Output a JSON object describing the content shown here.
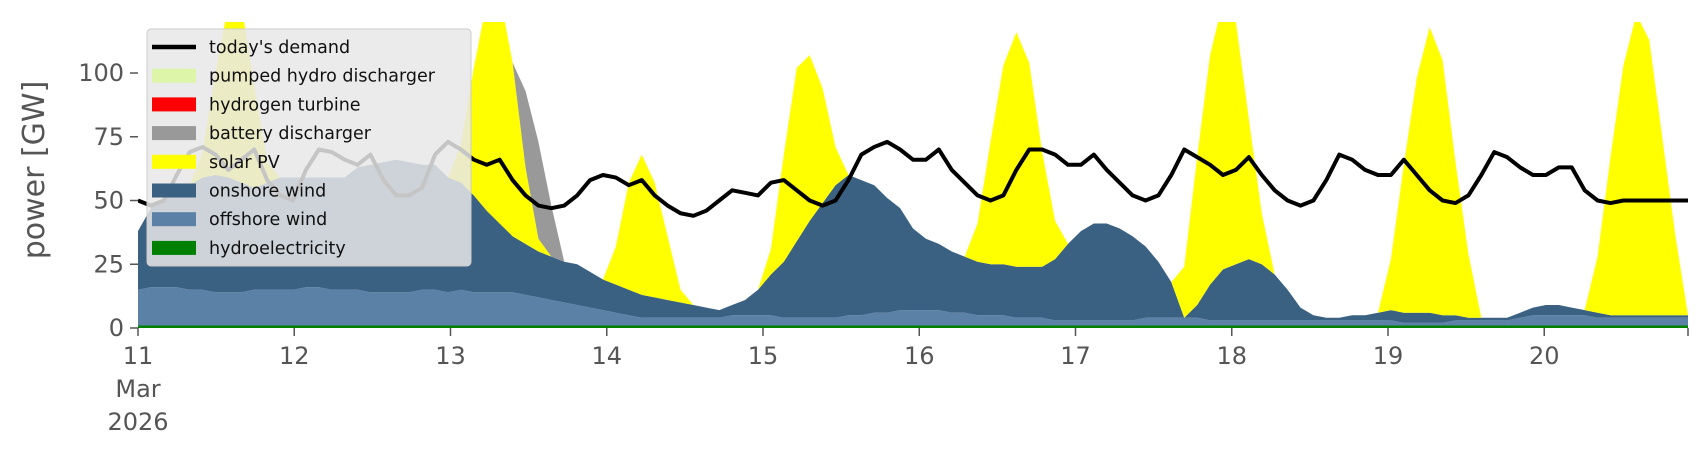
{
  "chart_data": {
    "type": "area",
    "title": "",
    "xlabel": "",
    "ylabel": "power [GW]",
    "ylim": [
      0,
      120
    ],
    "yticks": [
      0,
      25,
      50,
      75,
      100
    ],
    "xlim": [
      0,
      9.92
    ],
    "x_ticks": [
      {
        "day": 0,
        "label": "11",
        "sub": [
          "Mar",
          "2026"
        ]
      },
      {
        "day": 1,
        "label": "12"
      },
      {
        "day": 2,
        "label": "13"
      },
      {
        "day": 3,
        "label": "14"
      },
      {
        "day": 4,
        "label": "15"
      },
      {
        "day": 5,
        "label": "16"
      },
      {
        "day": 6,
        "label": "17"
      },
      {
        "day": 7,
        "label": "18"
      },
      {
        "day": 8,
        "label": "19"
      },
      {
        "day": 9,
        "label": "20"
      }
    ],
    "grid": false,
    "legend_position": "top-left",
    "series": [
      {
        "name": "hydroelectricity",
        "color": "#008000",
        "values": [
          1,
          1,
          1,
          1,
          1,
          1,
          1,
          1,
          1,
          1,
          1,
          1,
          1,
          1,
          1,
          1,
          1,
          1,
          1,
          1,
          1,
          1,
          1,
          1,
          1,
          1,
          1,
          1,
          1,
          1,
          1,
          1,
          1,
          1,
          1,
          1,
          1,
          1,
          1,
          1,
          1,
          1,
          1,
          1,
          1,
          1,
          1,
          1,
          1,
          1,
          1,
          1,
          1,
          1,
          1,
          1,
          1,
          1,
          1,
          1,
          1,
          1,
          1,
          1,
          1,
          1,
          1,
          1,
          1,
          1,
          1,
          1,
          1,
          1,
          1,
          1,
          1,
          1,
          1,
          1,
          1,
          1,
          1,
          1,
          1,
          1,
          1,
          1,
          1,
          1,
          1,
          1,
          1,
          1,
          1,
          1,
          1,
          1,
          1,
          1,
          1,
          1,
          1,
          1,
          1,
          1,
          1,
          1,
          1,
          1,
          1,
          1,
          1,
          1,
          1,
          1,
          1,
          1,
          1,
          1,
          1
        ]
      },
      {
        "name": "offshore wind",
        "color": "#5b82a6",
        "values": [
          14,
          15,
          15,
          15,
          14,
          14,
          13,
          13,
          13,
          14,
          14,
          14,
          14,
          15,
          15,
          14,
          14,
          14,
          13,
          13,
          13,
          13,
          14,
          14,
          13,
          14,
          13,
          13,
          13,
          13,
          12,
          11,
          10,
          9,
          8,
          7,
          6,
          5,
          4,
          3,
          3,
          3,
          3,
          3,
          3,
          3,
          4,
          4,
          4,
          4,
          3,
          3,
          3,
          3,
          3,
          4,
          4,
          5,
          5,
          6,
          6,
          6,
          6,
          5,
          5,
          4,
          4,
          4,
          3,
          3,
          3,
          2,
          2,
          2,
          2,
          2,
          2,
          2,
          3,
          3,
          3,
          3,
          3,
          2,
          2,
          2,
          2,
          2,
          2,
          2,
          2,
          2,
          2,
          2,
          2,
          2,
          2,
          2,
          1,
          1,
          1,
          1,
          2,
          2,
          2,
          2,
          2,
          3,
          4,
          4,
          4,
          4,
          4,
          3,
          3,
          3,
          3,
          3,
          3,
          3,
          3,
          3
        ]
      },
      {
        "name": "onshore wind",
        "color": "#3b6182",
        "values": [
          23,
          31,
          35,
          39,
          41,
          44,
          46,
          45,
          43,
          40,
          42,
          44,
          44,
          43,
          43,
          44,
          44,
          48,
          50,
          51,
          52,
          51,
          49,
          49,
          45,
          42,
          38,
          32,
          27,
          22,
          20,
          18,
          17,
          16,
          16,
          14,
          12,
          11,
          10,
          9,
          8,
          7,
          6,
          5,
          4,
          3,
          4,
          6,
          10,
          16,
          22,
          30,
          38,
          45,
          52,
          55,
          53,
          50,
          45,
          40,
          32,
          28,
          26,
          24,
          22,
          21,
          20,
          20,
          20,
          20,
          20,
          24,
          30,
          35,
          38,
          38,
          36,
          33,
          28,
          22,
          14,
          0,
          5,
          14,
          20,
          22,
          24,
          22,
          18,
          12,
          5,
          2,
          1,
          1,
          2,
          2,
          3,
          4,
          4,
          4,
          4,
          3,
          2,
          1,
          1,
          1,
          1,
          2,
          3,
          4,
          4,
          3,
          2,
          2,
          1,
          1,
          1,
          1,
          1,
          1,
          1
        ]
      },
      {
        "name": "solar PV",
        "color": "#ffff00",
        "values": [
          0,
          0,
          0,
          0,
          0,
          10,
          40,
          68,
          70,
          40,
          8,
          0,
          0,
          0,
          0,
          0,
          0,
          0,
          0,
          0,
          0,
          0,
          0,
          0,
          0,
          15,
          50,
          82,
          90,
          68,
          30,
          5,
          0,
          0,
          0,
          0,
          0,
          15,
          42,
          55,
          45,
          25,
          5,
          0,
          0,
          0,
          0,
          0,
          0,
          10,
          42,
          68,
          65,
          45,
          15,
          0,
          0,
          0,
          0,
          0,
          0,
          0,
          0,
          0,
          0,
          15,
          48,
          78,
          92,
          80,
          45,
          15,
          0,
          0,
          0,
          0,
          0,
          0,
          0,
          0,
          0,
          20,
          58,
          90,
          105,
          95,
          55,
          20,
          0,
          0,
          0,
          0,
          0,
          0,
          0,
          0,
          0,
          20,
          58,
          92,
          112,
          100,
          60,
          25,
          0,
          0,
          0,
          0,
          0,
          0,
          0,
          0,
          0,
          22,
          62,
          98,
          118,
          108,
          70,
          32,
          0,
          0,
          0
        ]
      },
      {
        "name": "battery discharger",
        "color": "#999999",
        "values": [
          0,
          0,
          0,
          0,
          0,
          0,
          0,
          0,
          0,
          0,
          0,
          0,
          0,
          0,
          0,
          0,
          0,
          0,
          0,
          0,
          0,
          0,
          0,
          0,
          0,
          0,
          0,
          0,
          0,
          0,
          30,
          38,
          20,
          0,
          0,
          0,
          0,
          0,
          0,
          0,
          0,
          0,
          0,
          0,
          0,
          0,
          0,
          0,
          0,
          0,
          0,
          0,
          0,
          0,
          0,
          0,
          0,
          0,
          0,
          0,
          0,
          0,
          0,
          0,
          0,
          0,
          0,
          0,
          0,
          0,
          0,
          0,
          0,
          0,
          0,
          0,
          0,
          0,
          0,
          0,
          0,
          0,
          0,
          0,
          0,
          0,
          0,
          0,
          0,
          0,
          0,
          0,
          0,
          0,
          0,
          0,
          0,
          0,
          0,
          0,
          0,
          0,
          0,
          0,
          0,
          0,
          0,
          0,
          0,
          0,
          0,
          0,
          0,
          0,
          0,
          0,
          0,
          0,
          0,
          0,
          0,
          0
        ]
      },
      {
        "name": "hydrogen turbine",
        "color": "#ff0000",
        "values": [
          0,
          0,
          0,
          0,
          0,
          0,
          0,
          0,
          0,
          0,
          0,
          0,
          0,
          0,
          0,
          0,
          0,
          0,
          0,
          0,
          0,
          0,
          0,
          0,
          0,
          0,
          0,
          0,
          0,
          0,
          0,
          0,
          0,
          0,
          0,
          0,
          0,
          0,
          0,
          0,
          0,
          0,
          0,
          0,
          0,
          0,
          0,
          0,
          0,
          0,
          0,
          0,
          0,
          0,
          0,
          0,
          0,
          0,
          0,
          0,
          0,
          0,
          0,
          0,
          0,
          0,
          0,
          0,
          0,
          0,
          0,
          0,
          0,
          0,
          0,
          0,
          0,
          0,
          0,
          0,
          0,
          0,
          0,
          0,
          0,
          0,
          0,
          0,
          0,
          0,
          0,
          0,
          0,
          0,
          0,
          0,
          0,
          0,
          0,
          0,
          0,
          0,
          0,
          0,
          0,
          0,
          0,
          0,
          0,
          0,
          0,
          0,
          0,
          0,
          0,
          0,
          0,
          0,
          0,
          0,
          0
        ]
      },
      {
        "name": "pumped hydro discharger",
        "color": "#dcf5a8",
        "values": [
          0,
          0,
          0,
          0,
          0,
          0,
          0,
          0,
          0,
          0,
          0,
          0,
          0,
          0,
          0,
          0,
          0,
          0,
          0,
          0,
          0,
          0,
          0,
          0,
          0,
          0,
          0,
          0,
          0,
          0,
          0,
          0,
          0,
          0,
          0,
          0,
          0,
          0,
          0,
          0,
          0,
          0,
          0,
          0,
          0,
          0,
          0,
          0,
          0,
          0,
          0,
          0,
          0,
          0,
          0,
          0,
          0,
          0,
          0,
          0,
          0,
          0,
          0,
          0,
          0,
          0,
          0,
          0,
          0,
          0,
          0,
          0,
          0,
          0,
          0,
          0,
          0,
          0,
          0,
          0,
          0,
          0,
          0,
          0,
          0,
          0,
          0,
          0,
          0,
          0,
          0,
          0,
          0,
          0,
          0,
          0,
          0,
          0,
          0,
          0,
          0,
          0,
          0,
          0,
          0,
          0,
          0,
          0,
          0,
          0,
          0,
          0,
          0,
          0,
          0,
          0,
          0,
          0,
          0,
          0,
          0
        ]
      },
      {
        "name": "today's demand",
        "color": "#000000",
        "values": [
          50,
          48,
          50,
          60,
          69,
          71,
          68,
          62,
          66,
          70,
          58,
          52,
          50,
          62,
          70,
          69,
          66,
          64,
          68,
          58,
          52,
          52,
          55,
          68,
          73,
          70,
          66,
          64,
          66,
          58,
          52,
          48,
          47,
          48,
          52,
          58,
          60,
          59,
          56,
          58,
          52,
          48,
          45,
          44,
          46,
          50,
          54,
          53,
          52,
          57,
          58,
          54,
          50,
          48,
          50,
          58,
          68,
          71,
          73,
          70,
          66,
          66,
          70,
          62,
          57,
          52,
          50,
          52,
          62,
          70,
          70,
          68,
          64,
          64,
          68,
          62,
          57,
          52,
          50,
          52,
          60,
          70,
          67,
          64,
          60,
          62,
          67,
          60,
          54,
          50,
          48,
          50,
          58,
          68,
          66,
          62,
          60,
          60,
          66,
          60,
          54,
          50,
          49,
          52,
          60,
          69,
          67,
          63,
          60,
          60,
          63,
          63,
          54,
          50,
          49,
          50,
          50,
          50,
          50,
          50,
          50
        ]
      }
    ]
  },
  "legend": [
    {
      "name": "today's demand",
      "color": "#000000",
      "kind": "line"
    },
    {
      "name": "pumped hydro discharger",
      "color": "#dcf5a8",
      "kind": "patch"
    },
    {
      "name": "hydrogen turbine",
      "color": "#ff0000",
      "kind": "patch"
    },
    {
      "name": "battery discharger",
      "color": "#999999",
      "kind": "patch"
    },
    {
      "name": "solar PV",
      "color": "#ffff00",
      "kind": "patch"
    },
    {
      "name": "onshore wind",
      "color": "#3b6182",
      "kind": "patch"
    },
    {
      "name": "offshore wind",
      "color": "#5b82a6",
      "kind": "patch"
    },
    {
      "name": "hydroelectricity",
      "color": "#008000",
      "kind": "patch"
    }
  ]
}
